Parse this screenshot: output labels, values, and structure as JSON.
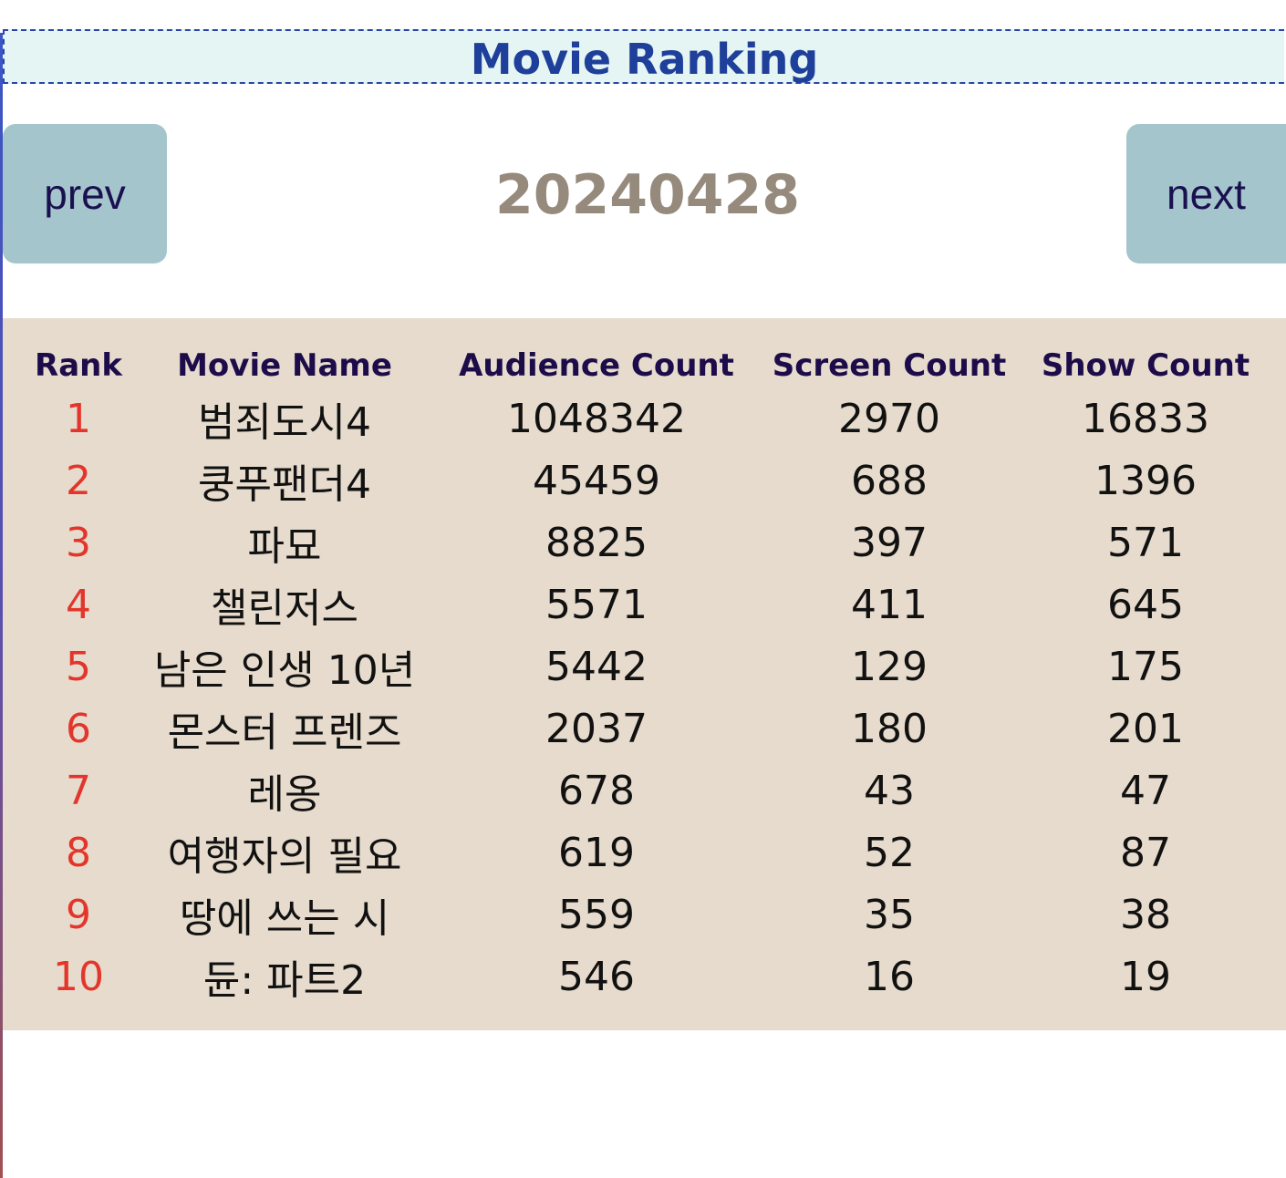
{
  "page": {
    "title": "Movie Ranking",
    "date": "20240428"
  },
  "nav": {
    "prev_label": "prev",
    "next_label": "next"
  },
  "table": {
    "headers": [
      "Rank",
      "Movie Name",
      "Audience Count",
      "Screen Count",
      "Show Count"
    ],
    "rows": [
      {
        "rank": "1",
        "name": "범죄도시4",
        "audience": "1048342",
        "screens": "2970",
        "shows": "16833"
      },
      {
        "rank": "2",
        "name": "쿵푸팬더4",
        "audience": "45459",
        "screens": "688",
        "shows": "1396"
      },
      {
        "rank": "3",
        "name": "파묘",
        "audience": "8825",
        "screens": "397",
        "shows": "571"
      },
      {
        "rank": "4",
        "name": "챌린저스",
        "audience": "5571",
        "screens": "411",
        "shows": "645"
      },
      {
        "rank": "5",
        "name": "남은 인생 10년",
        "audience": "5442",
        "screens": "129",
        "shows": "175"
      },
      {
        "rank": "6",
        "name": "몬스터 프렌즈",
        "audience": "2037",
        "screens": "180",
        "shows": "201"
      },
      {
        "rank": "7",
        "name": "레옹",
        "audience": "678",
        "screens": "43",
        "shows": "47"
      },
      {
        "rank": "8",
        "name": "여행자의 필요",
        "audience": "619",
        "screens": "52",
        "shows": "87"
      },
      {
        "rank": "9",
        "name": "땅에 쓰는 시",
        "audience": "559",
        "screens": "35",
        "shows": "38"
      },
      {
        "rank": "10",
        "name": "듄: 파트2",
        "audience": "546",
        "screens": "16",
        "shows": "19"
      }
    ]
  },
  "colors": {
    "title": "#1e3f9a",
    "header_bg": "#e4f5f4",
    "button_bg": "#a4c5cc",
    "date": "#958a7c",
    "table_bg": "#e6dbcc",
    "rank": "#e3352b",
    "column_header": "#1d0c4a"
  }
}
